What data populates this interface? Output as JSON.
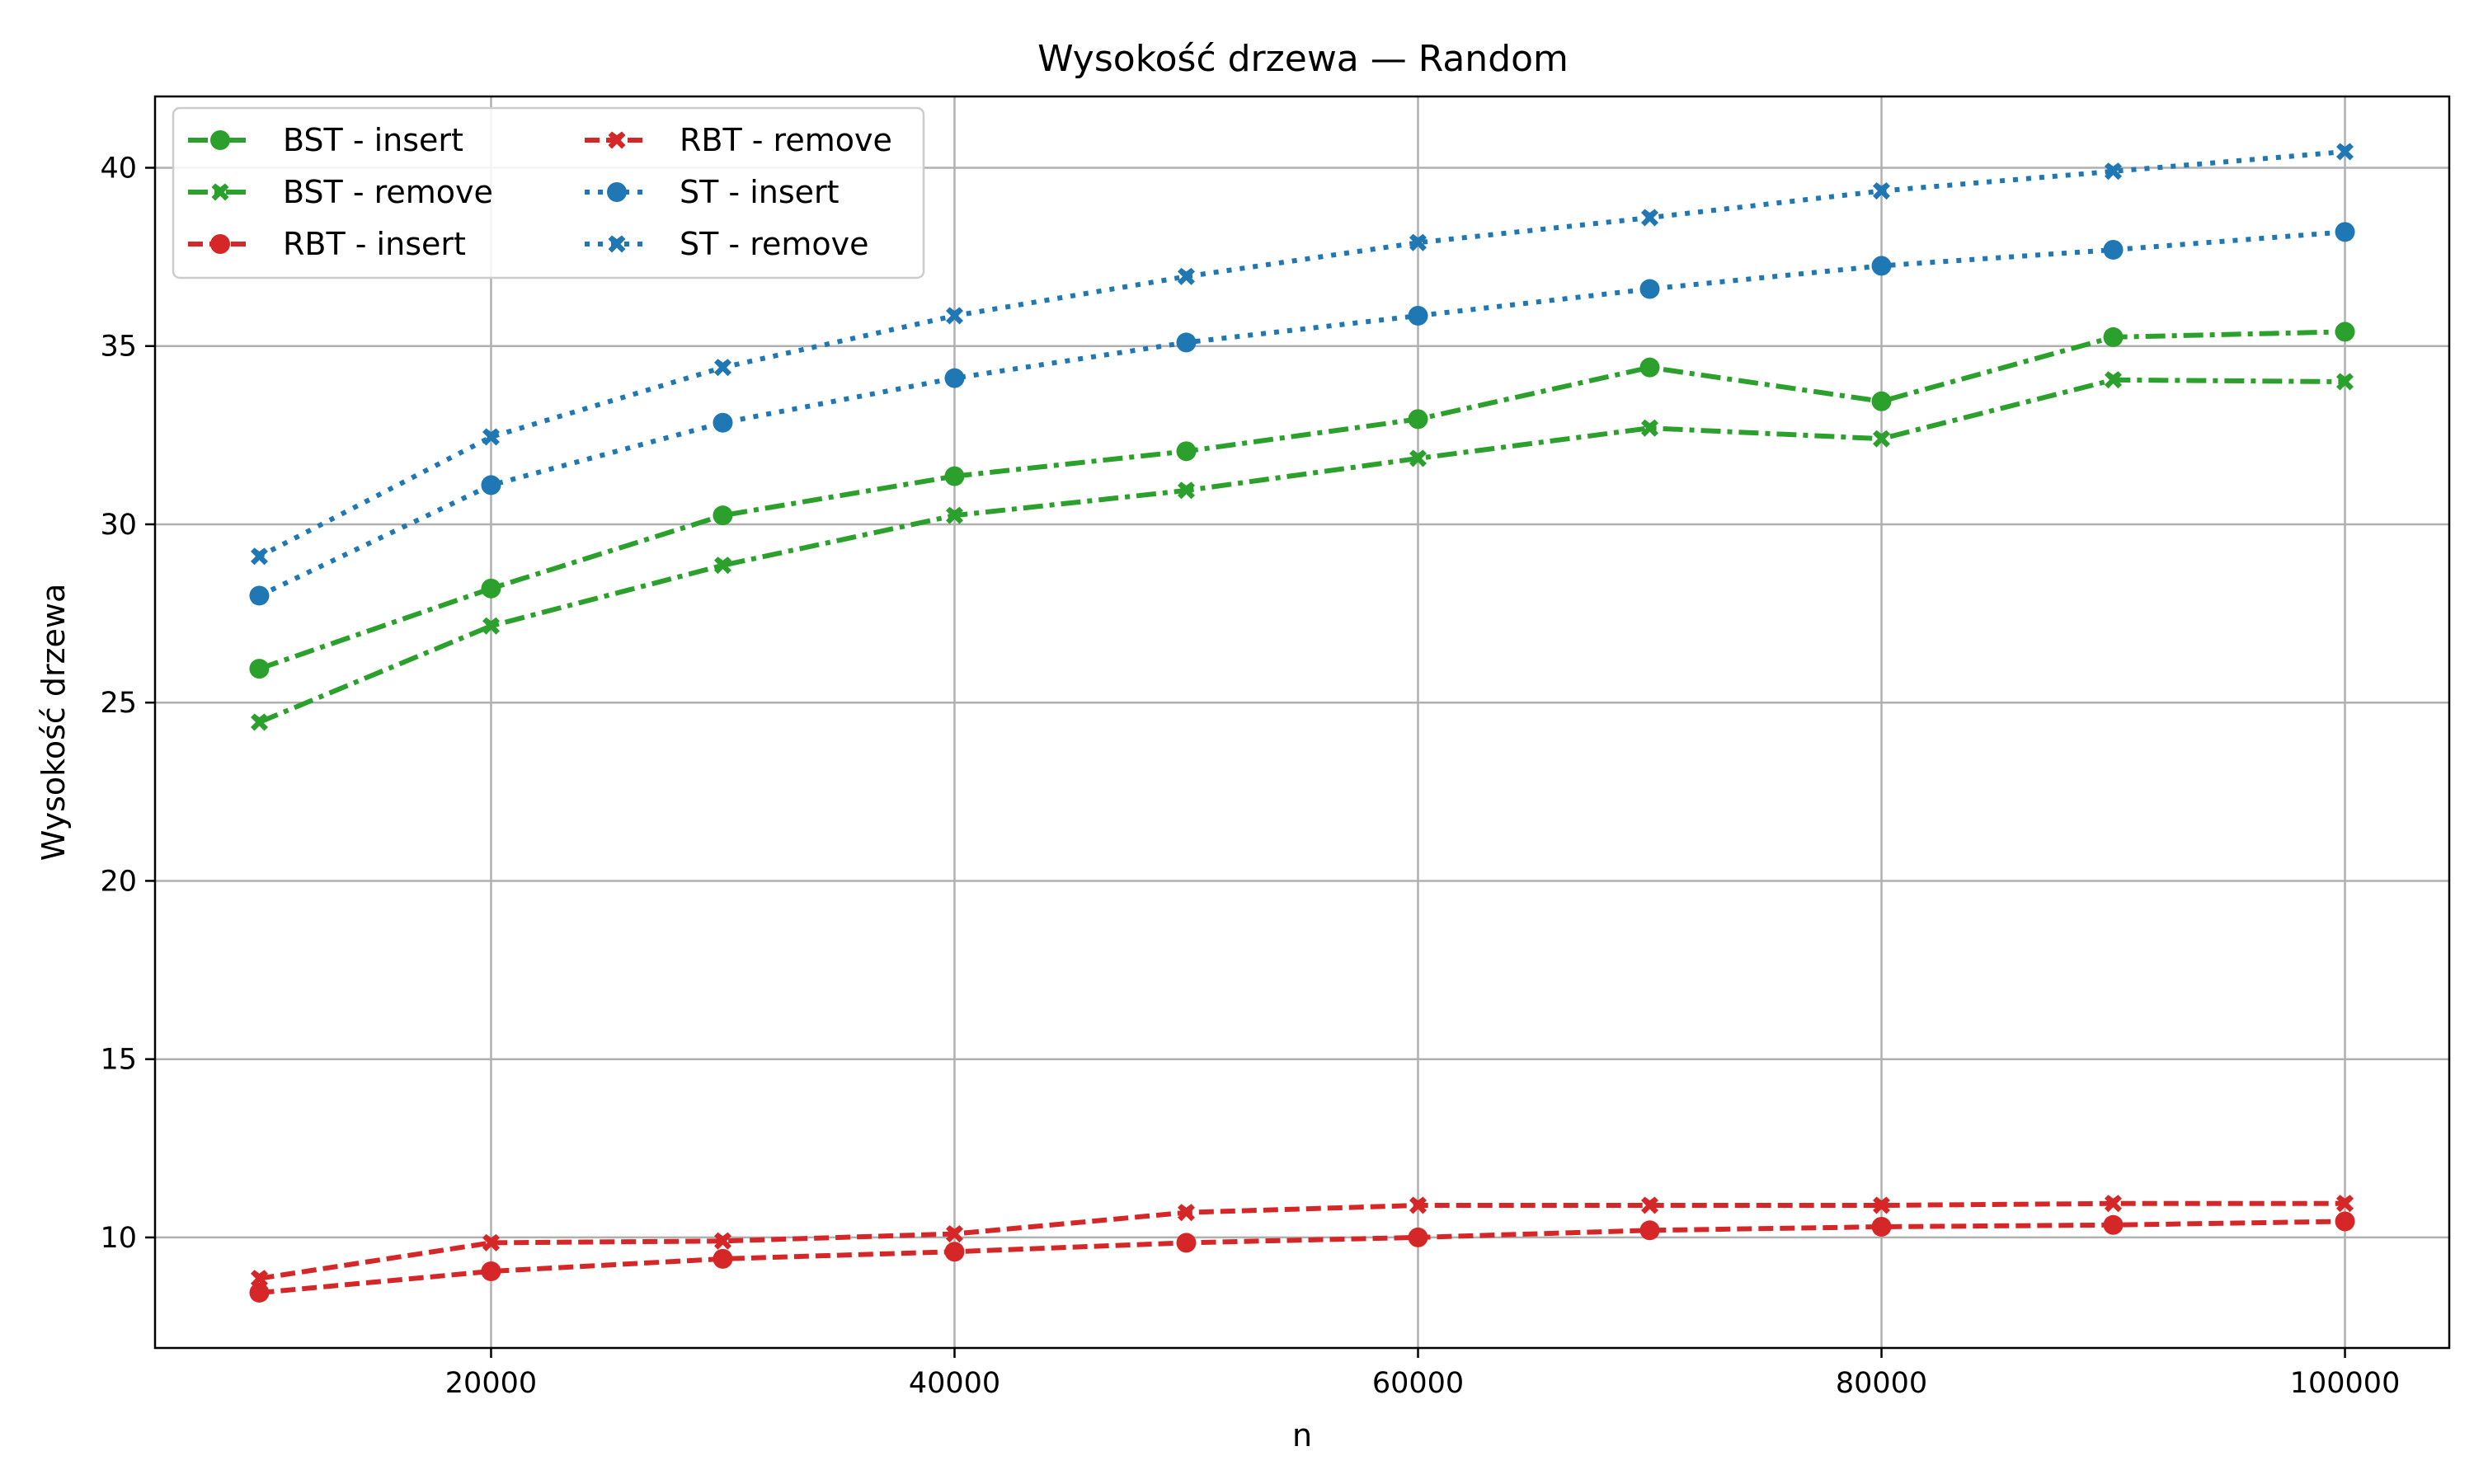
{
  "chart_data": {
    "type": "line",
    "title": "Wysokość drzewa — Random",
    "xlabel": "n",
    "ylabel": "Wysokość drzewa",
    "xlim": [
      5500,
      104500
    ],
    "ylim": [
      6.9,
      42.0
    ],
    "x_ticks": [
      20000,
      40000,
      60000,
      80000,
      100000
    ],
    "y_ticks": [
      10,
      15,
      20,
      25,
      30,
      35,
      40
    ],
    "grid": true,
    "legend_position": "top-left",
    "legend_columns": 2,
    "x": [
      10000,
      20000,
      30000,
      40000,
      50000,
      60000,
      70000,
      80000,
      90000,
      100000
    ],
    "series": [
      {
        "name": "BST - insert",
        "color": "#2ca02c",
        "line_style": "dashdot",
        "marker": "circle",
        "values": [
          25.95,
          28.2,
          30.25,
          31.35,
          32.05,
          32.95,
          34.4,
          33.45,
          35.25,
          35.4
        ]
      },
      {
        "name": "BST - remove",
        "color": "#2ca02c",
        "line_style": "dashdot",
        "marker": "x-filled",
        "values": [
          24.45,
          27.15,
          28.85,
          30.25,
          30.95,
          31.85,
          32.7,
          32.4,
          34.05,
          34.0
        ]
      },
      {
        "name": "RBT - insert",
        "color": "#d62728",
        "line_style": "dashed",
        "marker": "circle",
        "values": [
          8.45,
          9.05,
          9.4,
          9.6,
          9.85,
          10.0,
          10.2,
          10.3,
          10.35,
          10.45
        ]
      },
      {
        "name": "RBT - remove",
        "color": "#d62728",
        "line_style": "dashed",
        "marker": "x-filled",
        "values": [
          8.85,
          9.85,
          9.9,
          10.1,
          10.7,
          10.9,
          10.9,
          10.9,
          10.95,
          10.95
        ]
      },
      {
        "name": "ST - insert",
        "color": "#1f77b4",
        "line_style": "dotted",
        "marker": "circle",
        "values": [
          28.0,
          31.1,
          32.85,
          34.1,
          35.1,
          35.85,
          36.6,
          37.25,
          37.7,
          38.2
        ]
      },
      {
        "name": "ST - remove",
        "color": "#1f77b4",
        "line_style": "dotted",
        "marker": "x-filled",
        "values": [
          29.1,
          32.45,
          34.4,
          35.85,
          36.95,
          37.9,
          38.6,
          39.35,
          39.9,
          40.45
        ]
      }
    ]
  }
}
